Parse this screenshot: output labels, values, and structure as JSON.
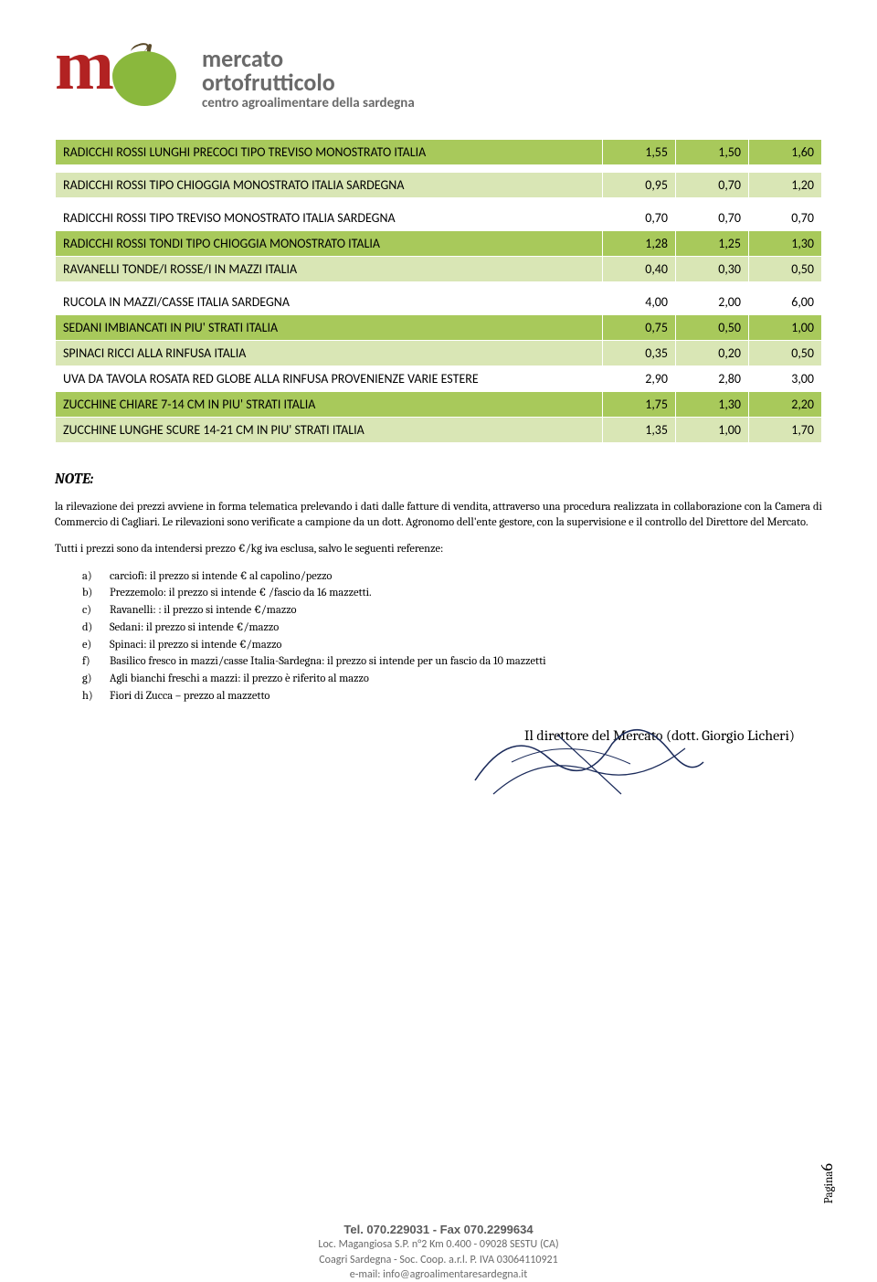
{
  "logo": {
    "line1": "mercato",
    "line2": "ortofrutticolo",
    "line3": "centro agroalimentare della sardegna"
  },
  "rows": [
    {
      "cls": "green",
      "desc": "RADICCHI ROSSI LUNGHI PRECOCI TIPO TREVISO MONOSTRATO ITALIA",
      "c1": "1,55",
      "c2": "1,50",
      "c3": "1,60"
    },
    {
      "cls": "spacer"
    },
    {
      "cls": "lgreen",
      "desc": "RADICCHI ROSSI TIPO CHIOGGIA MONOSTRATO ITALIA SARDEGNA",
      "c1": "0,95",
      "c2": "0,70",
      "c3": "1,20"
    },
    {
      "cls": "spacer"
    },
    {
      "cls": "white",
      "desc": "RADICCHI ROSSI TIPO TREVISO MONOSTRATO ITALIA SARDEGNA",
      "c1": "0,70",
      "c2": "0,70",
      "c3": "0,70"
    },
    {
      "cls": "green",
      "desc": "RADICCHI ROSSI TONDI TIPO CHIOGGIA MONOSTRATO ITALIA",
      "c1": "1,28",
      "c2": "1,25",
      "c3": "1,30"
    },
    {
      "cls": "lgreen",
      "desc": "RAVANELLI TONDE/I ROSSE/I IN MAZZI ITALIA",
      "c1": "0,40",
      "c2": "0,30",
      "c3": "0,50"
    },
    {
      "cls": "spacer"
    },
    {
      "cls": "white",
      "desc": "RUCOLA IN MAZZI/CASSE ITALIA SARDEGNA",
      "c1": "4,00",
      "c2": "2,00",
      "c3": "6,00"
    },
    {
      "cls": "green",
      "desc": "SEDANI IMBIANCATI IN PIU' STRATI ITALIA",
      "c1": "0,75",
      "c2": "0,50",
      "c3": "1,00"
    },
    {
      "cls": "lgreen",
      "desc": "SPINACI RICCI ALLA RINFUSA ITALIA",
      "c1": "0,35",
      "c2": "0,20",
      "c3": "0,50"
    },
    {
      "cls": "white",
      "desc": "UVA DA TAVOLA ROSATA RED GLOBE ALLA RINFUSA PROVENIENZE VARIE ESTERE",
      "c1": "2,90",
      "c2": "2,80",
      "c3": "3,00"
    },
    {
      "cls": "green",
      "desc": "ZUCCHINE CHIARE 7-14 CM IN PIU' STRATI ITALIA",
      "c1": "1,75",
      "c2": "1,30",
      "c3": "2,20"
    },
    {
      "cls": "lgreen",
      "desc": "ZUCCHINE LUNGHE SCURE 14-21 CM IN PIU' STRATI ITALIA",
      "c1": "1,35",
      "c2": "1,00",
      "c3": "1,70"
    }
  ],
  "notes": {
    "title": "NOTE:",
    "para1": "la rilevazione dei prezzi avviene in forma telematica prelevando i dati dalle fatture di vendita, attraverso una procedura realizzata in collaborazione con la Camera di Commercio di Cagliari. Le rilevazioni sono verificate a campione da un dott. Agronomo dell'ente gestore, con la supervisione e il controllo del Direttore del Mercato.",
    "para2": "Tutti i prezzi sono da intendersi prezzo €/kg iva esclusa, salvo le seguenti referenze:",
    "items": [
      {
        "letter": "a)",
        "text": "carciofi: il prezzo si intende € al capolino/pezzo"
      },
      {
        "letter": "b)",
        "text": "Prezzemolo: il prezzo  si intende € /fascio da 16 mazzetti."
      },
      {
        "letter": "c)",
        "text": "Ravanelli: : il prezzo si intende €/mazzo"
      },
      {
        "letter": "d)",
        "text": "Sedani: il prezzo si intende €/mazzo"
      },
      {
        "letter": "e)",
        "text": "Spinaci: il prezzo si intende €/mazzo"
      },
      {
        "letter": "f)",
        "text": "Basilico fresco in mazzi/casse Italia-Sardegna: il prezzo si intende per un fascio da 10 mazzetti"
      },
      {
        "letter": "g)",
        "text": "Agli bianchi freschi a mazzi: il prezzo è riferito al mazzo"
      },
      {
        "letter": "h)",
        "text": "Fiori di Zucca – prezzo al mazzetto"
      }
    ]
  },
  "signature": "Il direttore del Mercato (dott. Giorgio Licheri)",
  "page": {
    "label": "Pagina",
    "num": "6"
  },
  "footer": {
    "phone": "Tel. 070.229031 - Fax 070.2299634",
    "addr1": "Loc. Magangiosa S.P. n°2 Km 0.400  - 09028 SESTU (CA)",
    "addr2": "Coagri Sardegna - Soc. Coop. a.r.l. P. IVA 03064110921",
    "email": "e-mail: info@agroalimentaresardegna.it"
  },
  "colors": {
    "green": "#a8c95b",
    "lgreen": "#d9e6b5",
    "brand_red": "#b22222",
    "brand_green": "#8ab83d",
    "text_gray": "#6a6a6a"
  }
}
